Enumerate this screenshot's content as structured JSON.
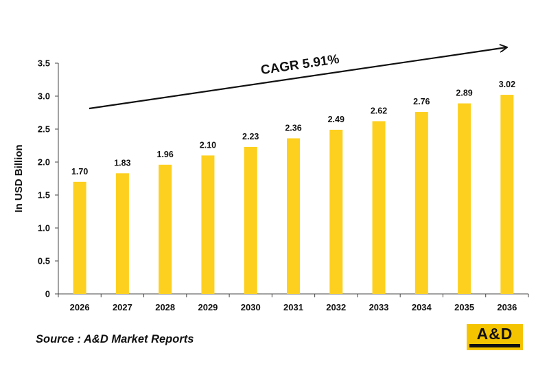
{
  "chart_data": {
    "type": "bar",
    "categories": [
      "2026",
      "2027",
      "2028",
      "2029",
      "2030",
      "2031",
      "2032",
      "2033",
      "2034",
      "2035",
      "2036"
    ],
    "values": [
      1.7,
      1.83,
      1.96,
      2.1,
      2.23,
      2.36,
      2.49,
      2.62,
      2.76,
      2.89,
      3.02
    ],
    "value_labels": [
      "1.70",
      "1.83",
      "1.96",
      "2.10",
      "2.23",
      "2.36",
      "2.49",
      "2.62",
      "2.76",
      "2.89",
      "3.02"
    ],
    "ylabel": "In USD Billion",
    "ylim": [
      0,
      3.5
    ],
    "yticks": [
      "0",
      "0.5",
      "1.0",
      "1.5",
      "2.0",
      "2.5",
      "3.0",
      "3.5"
    ],
    "grid": false,
    "bar_color": "#fdd01f",
    "annotation": "CAGR 5.91%"
  },
  "source": "Source : A&D Market Reports",
  "logo": {
    "text": "A&D",
    "color": "#f5c400"
  }
}
